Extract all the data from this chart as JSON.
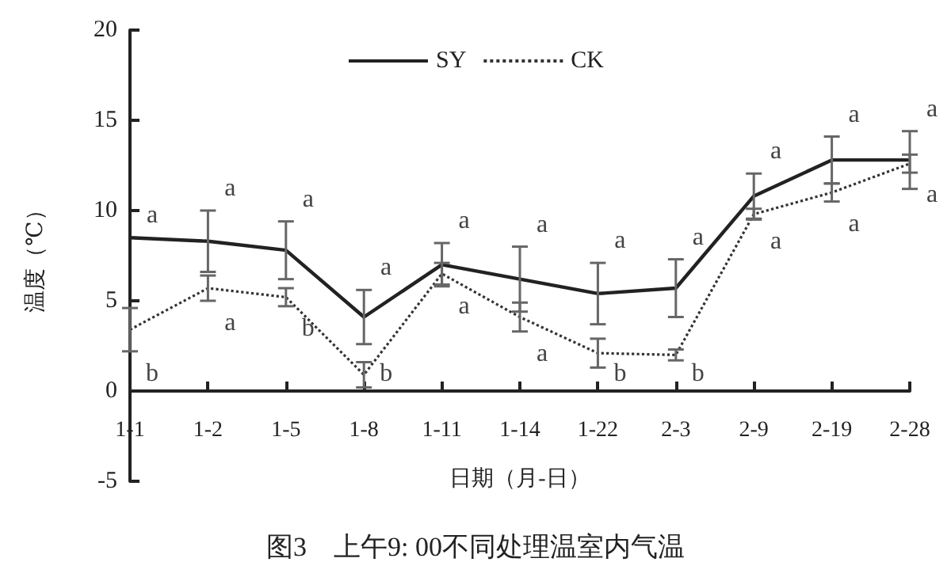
{
  "chart_data": {
    "type": "line",
    "title": "图3　上午9: 00不同处理温室内气温",
    "xlabel": "日期（月-日）",
    "ylabel": "温度（℃）",
    "categories": [
      "1-1",
      "1-2",
      "1-5",
      "1-8",
      "1-11",
      "1-14",
      "1-22",
      "2-3",
      "2-9",
      "2-19",
      "2-28"
    ],
    "series": [
      {
        "name": "SY",
        "color": "#222222",
        "line_style": "solid",
        "values": [
          8.5,
          8.3,
          7.8,
          4.1,
          7.0,
          6.2,
          5.4,
          5.7,
          10.8,
          12.8,
          12.8
        ],
        "errors": [
          null,
          1.7,
          1.6,
          1.5,
          1.2,
          1.8,
          1.7,
          1.6,
          1.25,
          1.3,
          1.6
        ]
      },
      {
        "name": "CK",
        "color": "#333333",
        "line_style": "dotted",
        "values": [
          3.4,
          5.7,
          5.2,
          0.9,
          6.5,
          4.1,
          2.1,
          2.0,
          9.8,
          11.0,
          12.6
        ],
        "errors": [
          1.2,
          0.7,
          0.5,
          0.7,
          0.6,
          0.8,
          0.8,
          0.3,
          0.3,
          0.5,
          0.5
        ]
      }
    ],
    "ylim": [
      -5,
      20
    ],
    "yticks": [
      -5,
      0,
      5,
      10,
      15,
      20
    ],
    "legend": "top",
    "marker": "none",
    "annotations": [
      "a",
      "b",
      "a",
      "a",
      "a",
      "b",
      "a",
      "b",
      "a",
      "a",
      "a",
      "a",
      "a",
      "b",
      "a",
      "b",
      "a",
      "a",
      "a",
      "a",
      "a",
      "a"
    ]
  }
}
